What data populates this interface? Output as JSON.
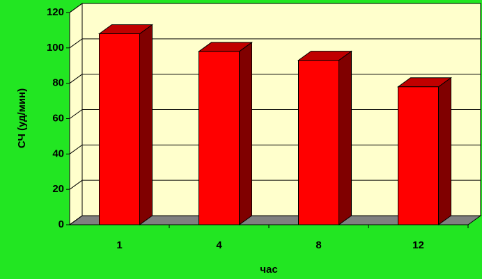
{
  "chart_data": {
    "type": "bar3d",
    "categories": [
      "1",
      "4",
      "8",
      "12"
    ],
    "values": [
      108,
      98,
      93,
      78
    ],
    "color": "#ff0000",
    "xlabel": "час",
    "ylabel": "СЧ (уд/мин)",
    "ylim": [
      0,
      120
    ],
    "yticks": [
      0,
      20,
      40,
      60,
      80,
      100,
      120
    ],
    "grid": true
  }
}
